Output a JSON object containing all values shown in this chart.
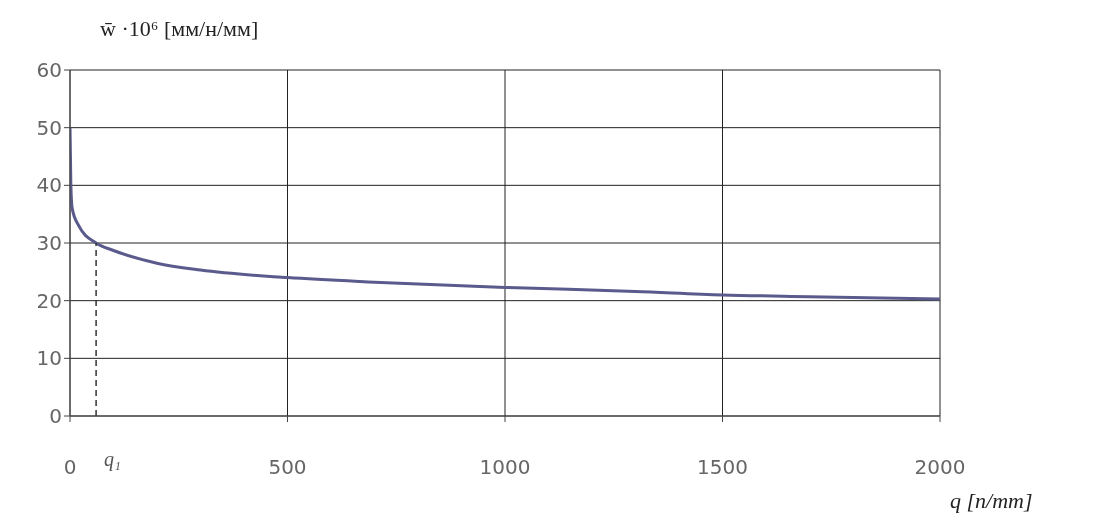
{
  "chart_data": {
    "type": "line",
    "ylabel": "w̄ ·10⁶ [мм/н/мм]",
    "xlabel": "q [n/mm]",
    "x": [
      0,
      2,
      5,
      20,
      60,
      100,
      200,
      300,
      500,
      700,
      1000,
      1300,
      1500,
      1700,
      2000
    ],
    "series": [
      {
        "color": "#5a5a8c",
        "values": [
          50,
          40,
          36,
          33,
          30,
          28.7,
          26.5,
          25.3,
          24,
          23.2,
          22.3,
          21.6,
          21,
          20.7,
          20.3
        ]
      }
    ],
    "xlim": [
      0,
      2000
    ],
    "xticks": [
      0,
      500,
      1000,
      1500,
      2000
    ],
    "ylim": [
      0,
      60
    ],
    "yticks": [
      0,
      10,
      20,
      30,
      40,
      50,
      60
    ],
    "grid": true,
    "marker": "none",
    "line_style": "solid",
    "ref_lines": [
      {
        "axis": "x",
        "value": 60,
        "label": "q₁",
        "line_style": "dashed"
      }
    ]
  }
}
